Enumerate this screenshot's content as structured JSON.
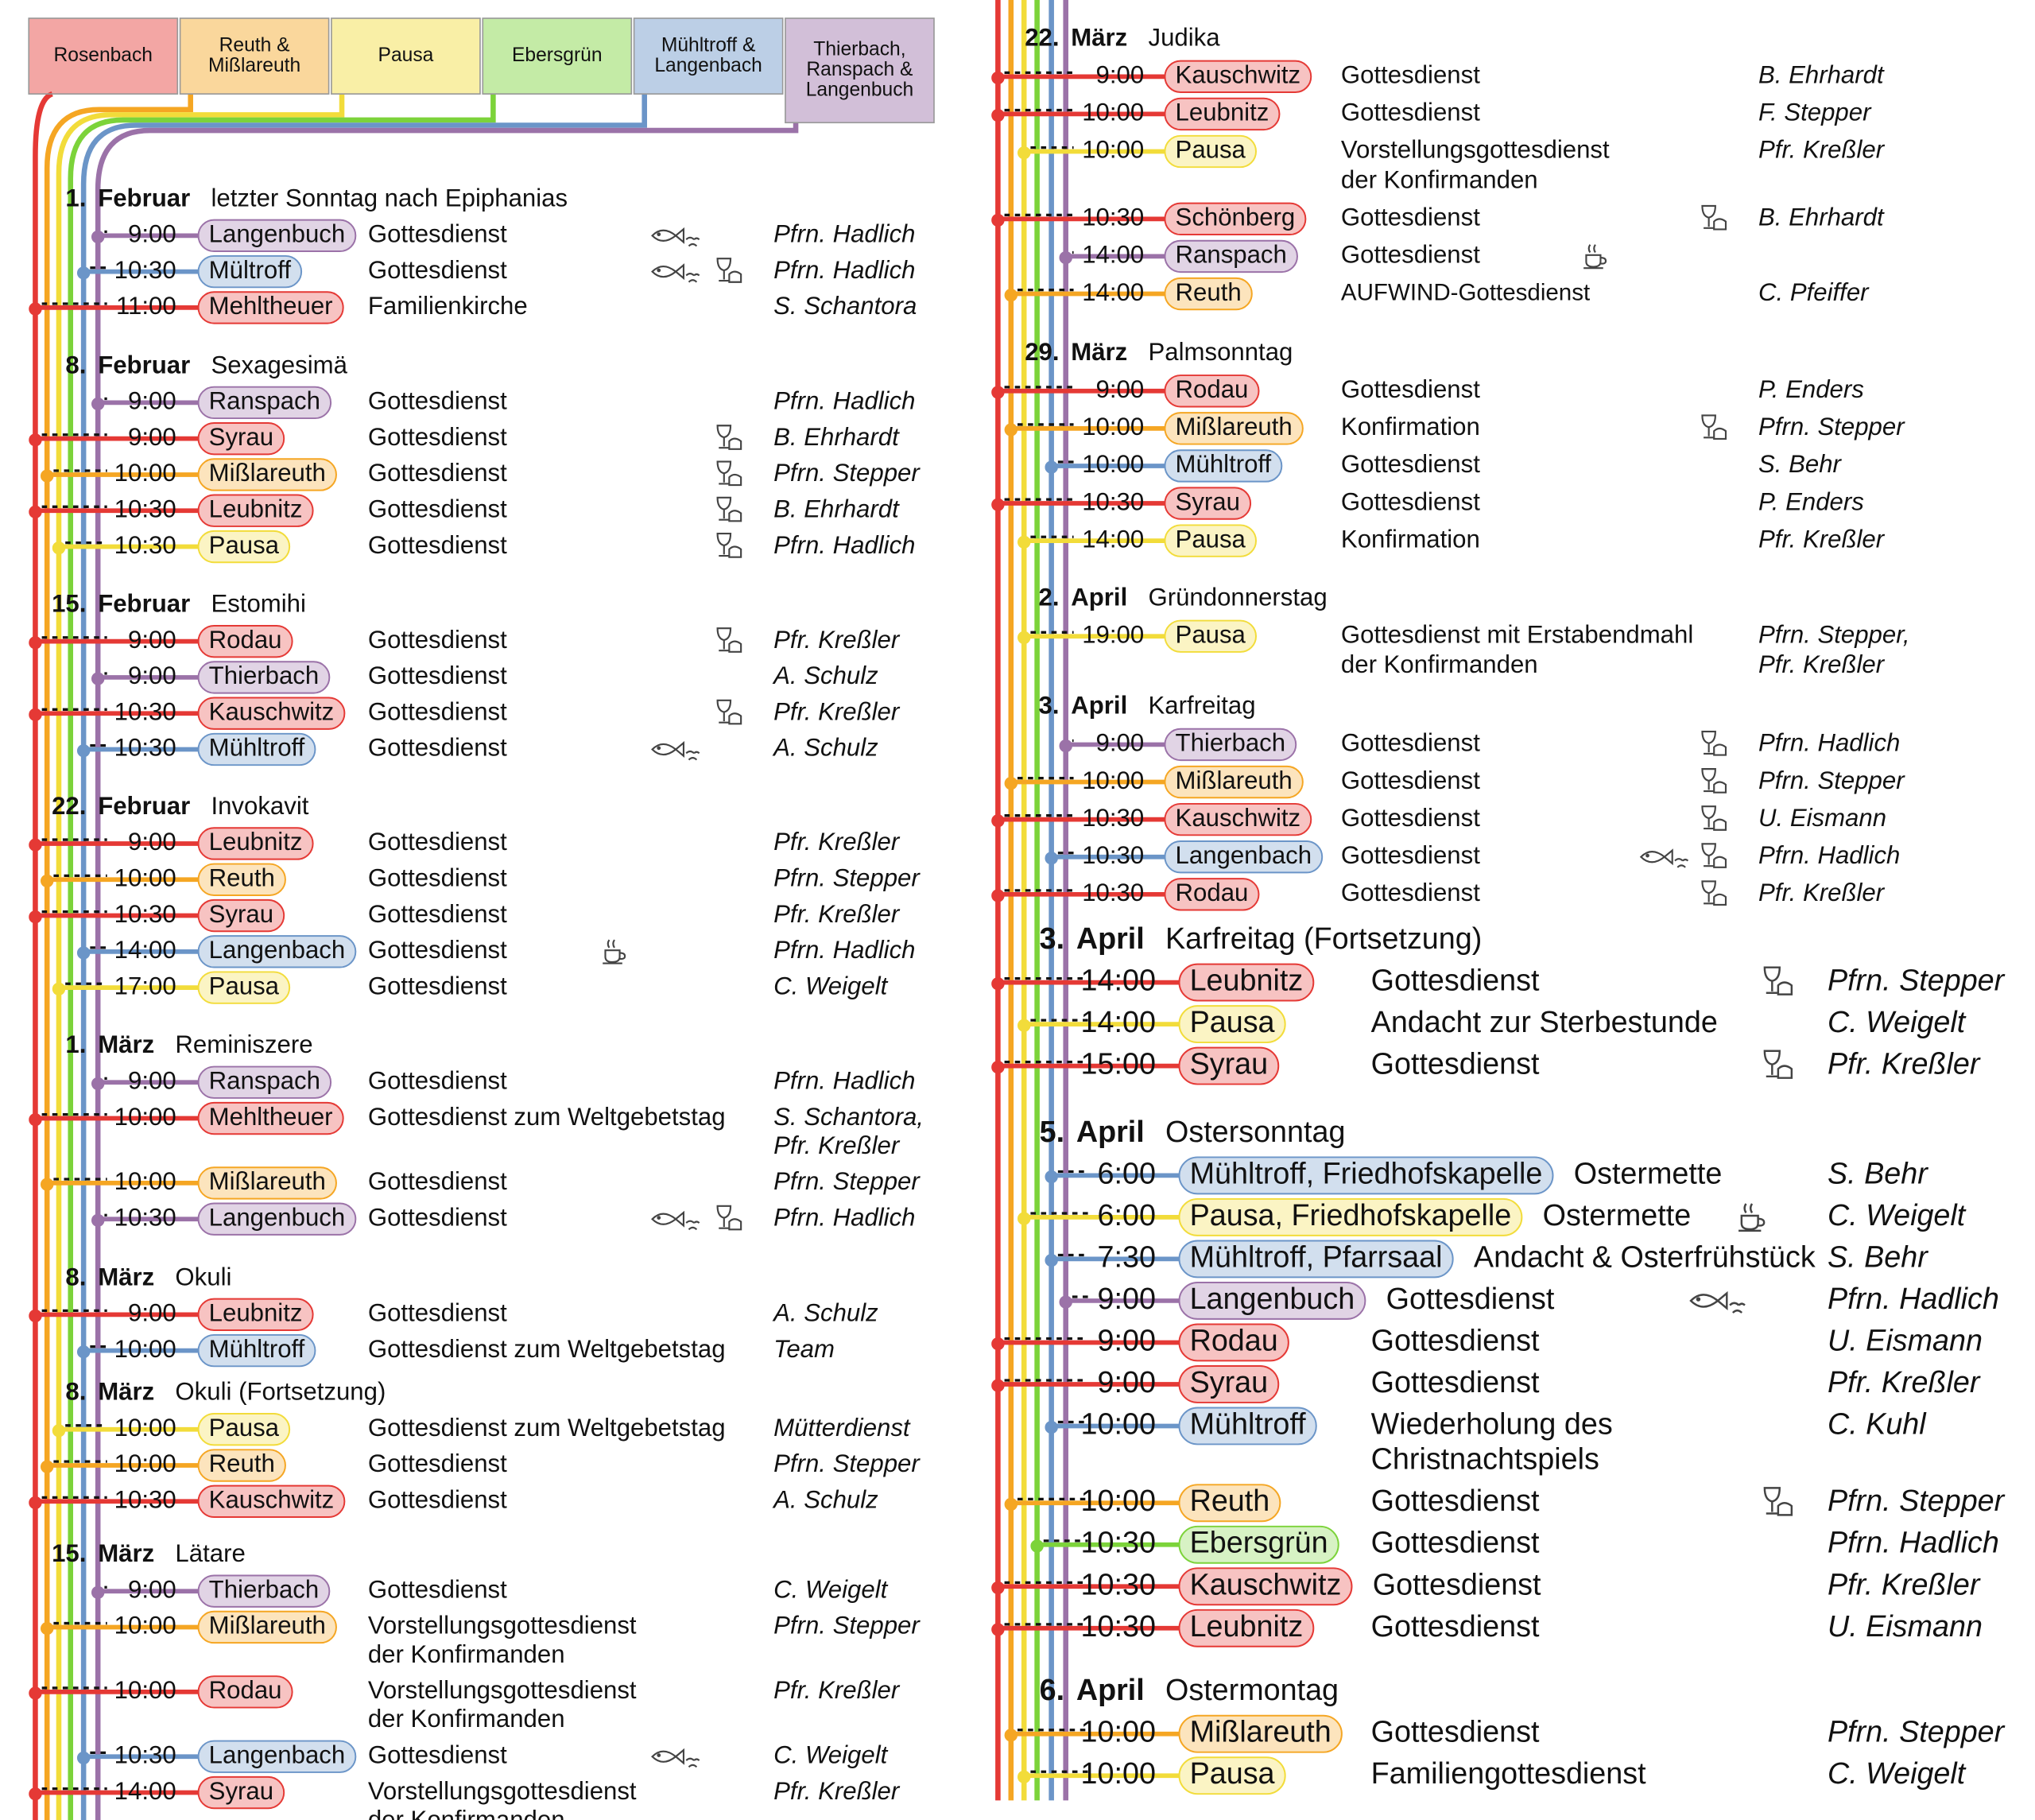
{
  "parishes": [
    {
      "name": [
        "Rosenbach"
      ],
      "color": "#e53935"
    },
    {
      "name": [
        "Reuth &",
        "Mißlareuth"
      ],
      "color": "#f5a623"
    },
    {
      "name": [
        "Pausa"
      ],
      "color": "#f2dc3a"
    },
    {
      "name": [
        "Ebersgrün"
      ],
      "color": "#7cd33a"
    },
    {
      "name": [
        "Mühltroff &",
        "Langenbach"
      ],
      "color": "#6b95c8"
    },
    {
      "name": [
        "Thierbach,",
        "Ranspach &",
        "Langenbuch"
      ],
      "color": "#9b72a8"
    }
  ],
  "days": [
    {
      "day": "1.",
      "month": "Februar",
      "name": "letzter Sonntag nach Epiphanias",
      "services": [
        {
          "time": "9:00",
          "place": "Langenbuch",
          "color": "#9b72a8",
          "event": "Gottesdienst",
          "pastor": "Pfrn. Hadlich"
        },
        {
          "time": "10:30",
          "place": "Mültroff",
          "color": "#6b95c8",
          "event": "Gottesdienst",
          "pastor": "Pfrn. Hadlich"
        },
        {
          "time": "11:00",
          "place": "Mehltheuer",
          "color": "#e53935",
          "event": "Familienkirche",
          "pastor": "S. Schantora"
        }
      ]
    },
    {
      "day": "8.",
      "month": "Februar",
      "name": "Sexagesimä",
      "services": [
        {
          "time": "9:00",
          "place": "Ranspach",
          "color": "#9b72a8",
          "event": "Gottesdienst",
          "pastor": "Pfrn. Hadlich"
        },
        {
          "time": "9:00",
          "place": "Syrau",
          "color": "#e53935",
          "event": "Gottesdienst",
          "pastor": "B. Ehrhardt"
        },
        {
          "time": "10:00",
          "place": "Mißlareuth",
          "color": "#f5a623",
          "event": "Gottesdienst",
          "pastor": "Pfrn. Stepper"
        },
        {
          "time": "10:30",
          "place": "Leubnitz",
          "color": "#e53935",
          "event": "Gottesdienst",
          "pastor": "B. Ehrhardt"
        },
        {
          "time": "10:30",
          "place": "Pausa",
          "color": "#f2dc3a",
          "event": "Gottesdienst",
          "pastor": "Pfrn. Hadlich"
        }
      ]
    },
    {
      "day": "15.",
      "month": "Februar",
      "name": "Estomihi",
      "services": [
        {
          "time": "9:00",
          "place": "Rodau",
          "color": "#e53935",
          "event": "Gottesdienst",
          "pastor": "Pfr. Kreßler"
        },
        {
          "time": "9:00",
          "place": "Thierbach",
          "color": "#9b72a8",
          "event": "Gottesdienst",
          "pastor": "A. Schulz"
        },
        {
          "time": "10:30",
          "place": "Kauschwitz",
          "color": "#e53935",
          "event": "Gottesdienst",
          "pastor": "Pfr. Kreßler"
        },
        {
          "time": "10:30",
          "place": "Mühltroff",
          "color": "#6b95c8",
          "event": "Gottesdienst",
          "pastor": "A. Schulz"
        }
      ]
    },
    {
      "day": "22.",
      "month": "Februar",
      "name": "Invokavit",
      "services": [
        {
          "time": "9:00",
          "place": "Leubnitz",
          "color": "#e53935",
          "event": "Gottesdienst",
          "pastor": "Pfr. Kreßler"
        },
        {
          "time": "10:00",
          "place": "Reuth",
          "color": "#f5a623",
          "event": "Gottesdienst",
          "pastor": "Pfrn. Stepper"
        },
        {
          "time": "10:30",
          "place": "Syrau",
          "color": "#e53935",
          "event": "Gottesdienst",
          "pastor": "Pfr. Kreßler"
        },
        {
          "time": "14:00",
          "place": "Langenbach",
          "color": "#6b95c8",
          "event": "Gottesdienst",
          "pastor": "Pfrn. Hadlich"
        },
        {
          "time": "17:00",
          "place": "Pausa",
          "color": "#f2dc3a",
          "event": "Gottesdienst",
          "pastor": "C. Weigelt"
        }
      ]
    },
    {
      "day": "1.",
      "month": "März",
      "name": "Reminiszere",
      "services": [
        {
          "time": "9:00",
          "place": "Ranspach",
          "color": "#9b72a8",
          "event": "Gottesdienst",
          "pastor": "Pfrn. Hadlich"
        },
        {
          "time": "10:00",
          "place": "Mehltheuer",
          "color": "#e53935",
          "event": "Gottesdienst zum Weltgebetstag",
          "pastor": [
            "S. Schantora,",
            "Pfr. Kreßler"
          ]
        },
        {
          "time": "10:00",
          "place": "Mißlareuth",
          "color": "#f5a623",
          "event": "Gottesdienst",
          "pastor": "Pfrn. Stepper"
        },
        {
          "time": "10:30",
          "place": "Langenbuch",
          "color": "#9b72a8",
          "event": "Gottesdienst",
          "pastor": "Pfrn. Hadlich"
        }
      ]
    },
    {
      "day": "8.",
      "month": "März",
      "name": "Okuli",
      "services": [
        {
          "time": "9:00",
          "place": "Leubnitz",
          "color": "#e53935",
          "event": "Gottesdienst",
          "pastor": "A. Schulz"
        },
        {
          "time": "10:00",
          "place": "Mühltroff",
          "color": "#6b95c8",
          "event": "Gottesdienst zum Weltgebetstag",
          "pastor": "Team"
        }
      ]
    },
    {
      "day": "8.",
      "month": "März",
      "name": "Okuli (Fortsetzung)",
      "services": [
        {
          "time": "10:00",
          "place": "Pausa",
          "color": "#f2dc3a",
          "event": "Gottesdienst zum Weltgebetstag",
          "pastor": "Mütterdienst"
        },
        {
          "time": "10:00",
          "place": "Reuth",
          "color": "#f5a623",
          "event": "Gottesdienst",
          "pastor": "Pfrn. Stepper"
        },
        {
          "time": "10:30",
          "place": "Kauschwitz",
          "color": "#e53935",
          "event": "Gottesdienst",
          "pastor": "A. Schulz"
        }
      ]
    },
    {
      "day": "15.",
      "month": "März",
      "name": "Lätare",
      "services": [
        {
          "time": "9:00",
          "place": "Thierbach",
          "color": "#9b72a8",
          "event": "Gottesdienst",
          "pastor": "C. Weigelt"
        },
        {
          "time": "10:00",
          "place": "Mißlareuth",
          "color": "#f5a623",
          "event": [
            "Vorstellungsgottesdienst",
            "der Konfirmanden"
          ],
          "pastor": "Pfrn. Stepper"
        },
        {
          "time": "10:00",
          "place": "Rodau",
          "color": "#e53935",
          "event": [
            "Vorstellungsgottesdienst",
            "der Konfirmanden"
          ],
          "pastor": "Pfr. Kreßler"
        },
        {
          "time": "10:30",
          "place": "Langenbach",
          "color": "#6b95c8",
          "event": "Gottesdienst",
          "pastor": "C. Weigelt"
        },
        {
          "time": "14:00",
          "place": "Syrau",
          "color": "#e53935",
          "event": [
            "Vorstellungsgottesdienst",
            "der Konfirmanden"
          ],
          "pastor": "Pfr. Kreßler"
        }
      ]
    },
    {
      "day": "22.",
      "month": "März",
      "name": "Judika",
      "services": [
        {
          "time": "9:00",
          "place": "Kauschwitz",
          "color": "#e53935",
          "event": "Gottesdienst",
          "pastor": "B. Ehrhardt"
        },
        {
          "time": "10:00",
          "place": "Leubnitz",
          "color": "#e53935",
          "event": "Gottesdienst",
          "pastor": "F. Stepper"
        },
        {
          "time": "10:00",
          "place": "Pausa",
          "color": "#f2dc3a",
          "event": [
            "Vorstellungsgottesdienst",
            "der Konfirmanden"
          ],
          "pastor": "Pfr. Kreßler"
        },
        {
          "time": "10:30",
          "place": "Schönberg",
          "color": "#e53935",
          "event": "Gottesdienst",
          "pastor": "B. Ehrhardt"
        },
        {
          "time": "14:00",
          "place": "Ranspach",
          "color": "#9b72a8",
          "event": "Gottesdienst"
        },
        {
          "time": "14:00",
          "place": "Reuth",
          "color": "#f5a623",
          "event": "AUFWIND-Gottesdienst",
          "pastor": "C. Pfeiffer"
        }
      ]
    },
    {
      "day": "29.",
      "month": "März",
      "name": "Palmsonntag",
      "services": [
        {
          "time": "9:00",
          "place": "Rodau",
          "color": "#e53935",
          "event": "Gottesdienst",
          "pastor": "P. Enders"
        },
        {
          "time": "10:00",
          "place": "Mißlareuth",
          "color": "#f5a623",
          "event": "Konfirmation",
          "pastor": "Pfrn. Stepper"
        },
        {
          "time": "10:00",
          "place": "Mühltroff",
          "color": "#6b95c8",
          "event": "Gottesdienst",
          "pastor": "S. Behr"
        },
        {
          "time": "10:30",
          "place": "Syrau",
          "color": "#e53935",
          "event": "Gottesdienst",
          "pastor": "P. Enders"
        },
        {
          "time": "14:00",
          "place": "Pausa",
          "color": "#f2dc3a",
          "event": "Konfirmation",
          "pastor": "Pfr. Kreßler"
        }
      ]
    },
    {
      "day": "2.",
      "month": "April",
      "name": "Gründonnerstag",
      "services": [
        {
          "time": "19:00",
          "place": "Pausa",
          "color": "#f2dc3a",
          "event": [
            "Gottesdienst mit Erstabendmahl",
            "der Konfirmanden"
          ],
          "pastor": [
            "Pfrn. Stepper,",
            "Pfr. Kreßler"
          ]
        }
      ]
    },
    {
      "day": "3.",
      "month": "April",
      "name": "Karfreitag",
      "services": [
        {
          "time": "9:00",
          "place": "Thierbach",
          "color": "#9b72a8",
          "event": "Gottesdienst",
          "pastor": "Pfrn. Hadlich"
        },
        {
          "time": "10:00",
          "place": "Mißlareuth",
          "color": "#f5a623",
          "event": "Gottesdienst",
          "pastor": "Pfrn. Stepper"
        },
        {
          "time": "10:30",
          "place": "Kauschwitz",
          "color": "#e53935",
          "event": "Gottesdienst",
          "pastor": "U. Eismann"
        },
        {
          "time": "10:30",
          "place": "Langenbach",
          "color": "#6b95c8",
          "event": "Gottesdienst",
          "pastor": "Pfrn. Hadlich"
        },
        {
          "time": "10:30",
          "place": "Rodau",
          "color": "#e53935",
          "event": "Gottesdienst",
          "pastor": "Pfr. Kreßler"
        }
      ]
    },
    {
      "day": "3.",
      "month": "April",
      "name": "Karfreitag (Fortsetzung)",
      "services": [
        {
          "time": "14:00",
          "place": "Leubnitz",
          "color": "#e53935",
          "event": "Gottesdienst",
          "pastor": "Pfrn. Stepper"
        },
        {
          "time": "14:00",
          "place": "Pausa",
          "color": "#f2dc3a",
          "event": "Andacht zur Sterbestunde",
          "pastor": "C. Weigelt"
        },
        {
          "time": "15:00",
          "place": "Syrau",
          "color": "#e53935",
          "event": "Gottesdienst",
          "pastor": "Pfr. Kreßler"
        }
      ]
    },
    {
      "day": "5.",
      "month": "April",
      "name": "Ostersonntag",
      "services": [
        {
          "time": "6:00",
          "place": "Mühltroff, Friedhofskapelle",
          "color": "#6b95c8",
          "event": "Ostermette",
          "pastor": "S. Behr"
        },
        {
          "time": "6:00",
          "place": "Pausa, Friedhofskapelle",
          "color": "#f2dc3a",
          "event": "Ostermette",
          "pastor": "C. Weigelt"
        },
        {
          "time": "7:30",
          "place": "Mühltroff, Pfarrsaal",
          "color": "#6b95c8",
          "event": "Andacht & Osterfrühstück",
          "pastor": "S. Behr"
        },
        {
          "time": "9:00",
          "place": "Langenbuch",
          "color": "#9b72a8",
          "event": "Gottesdienst",
          "pastor": "Pfrn. Hadlich"
        },
        {
          "time": "9:00",
          "place": "Rodau",
          "color": "#e53935",
          "event": "Gottesdienst",
          "pastor": "U. Eismann"
        },
        {
          "time": "9:00",
          "place": "Syrau",
          "color": "#e53935",
          "event": "Gottesdienst",
          "pastor": "Pfr. Kreßler"
        },
        {
          "time": "10:00",
          "place": "Mühltroff",
          "color": "#6b95c8",
          "event": [
            "Wiederholung des",
            "Christnachtspiels"
          ],
          "pastor": "C. Kuhl"
        },
        {
          "time": "10:00",
          "place": "Reuth",
          "color": "#f5a623",
          "event": "Gottesdienst",
          "pastor": "Pfrn. Stepper"
        },
        {
          "time": "10:30",
          "place": "Ebersgrün",
          "color": "#7cd33a",
          "event": "Gottesdienst",
          "pastor": "Pfrn. Hadlich"
        },
        {
          "time": "10:30",
          "place": "Kauschwitz",
          "color": "#e53935",
          "event": "Gottesdienst",
          "pastor": "Pfr. Kreßler"
        },
        {
          "time": "10:30",
          "place": "Leubnitz",
          "color": "#e53935",
          "event": "Gottesdienst",
          "pastor": "U. Eismann"
        }
      ]
    },
    {
      "day": "6.",
      "month": "April",
      "name": "Ostermontag",
      "services": [
        {
          "time": "10:00",
          "place": "Mißlareuth",
          "color": "#f5a623",
          "event": "Gottesdienst",
          "pastor": "Pfrn. Stepper"
        },
        {
          "time": "10:00",
          "place": "Pausa",
          "color": "#f2dc3a",
          "event": "Familiengottesdienst",
          "pastor": "C. Weigelt"
        }
      ]
    }
  ]
}
